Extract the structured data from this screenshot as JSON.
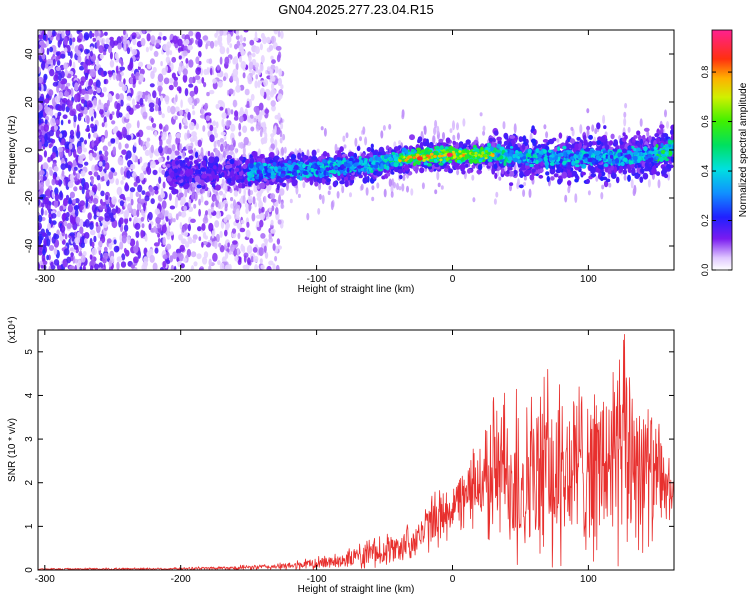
{
  "title": "GN04.2025.277.23.04.R15",
  "chart_data": [
    {
      "type": "heatmap",
      "title": "GN04.2025.277.23.04.R15",
      "xlabel": "Height of straight line (km)",
      "ylabel": "Frequency (Hz)",
      "xlim": [
        -305,
        163
      ],
      "ylim": [
        -50,
        50
      ],
      "xticks": [
        -300,
        -200,
        -100,
        0,
        100
      ],
      "yticks": [
        -40,
        -20,
        0,
        20,
        40
      ],
      "colorbar": {
        "label": "Normalized spectral amplitude",
        "range": [
          0,
          0.97
        ],
        "ticks": [
          0.0,
          0.2,
          0.4,
          0.6,
          0.8
        ]
      },
      "ridge": {
        "x": [
          -200,
          -150,
          -100,
          -60,
          -30,
          0,
          30,
          60,
          90,
          120,
          150,
          163
        ],
        "y": [
          -10,
          -9,
          -8,
          -6,
          -3,
          -2,
          -2,
          -3,
          -3,
          -3,
          -2,
          1
        ]
      },
      "peak": {
        "x": -2,
        "y": -2,
        "value": 0.95
      }
    },
    {
      "type": "line",
      "xlabel": "Height of straight line (km)",
      "ylabel": "SNR (10 * v/v)",
      "y_multiplier": "(x10⁴)",
      "xlim": [
        -305,
        163
      ],
      "ylim": [
        0,
        5.5
      ],
      "xticks": [
        -300,
        -200,
        -100,
        0,
        100
      ],
      "yticks": [
        0,
        1,
        2,
        3,
        4,
        5
      ],
      "series": [
        {
          "name": "SNR",
          "color": "#e8302e",
          "envelope": {
            "x": [
              -305,
              -200,
              -150,
              -120,
              -100,
              -80,
              -60,
              -40,
              -30,
              -20,
              -10,
              0,
              10,
              20,
              30,
              40,
              50,
              60,
              70,
              80,
              90,
              100,
              110,
              120,
              130,
              140,
              150,
              155,
              163
            ],
            "high": [
              0.04,
              0.06,
              0.12,
              0.18,
              0.3,
              0.45,
              0.7,
              0.9,
              1.1,
              1.5,
              1.9,
              2.1,
              2.4,
              3.3,
              4.3,
              4.0,
              4.2,
              3.9,
              4.6,
              4.2,
              4.6,
              4.9,
              4.4,
              5.4,
              5.4,
              4.6,
              3.5,
              3.1,
              2.1
            ],
            "low": [
              0.0,
              0.0,
              0.0,
              0.0,
              0.0,
              0.02,
              0.05,
              0.1,
              0.2,
              0.3,
              0.5,
              0.8,
              1.0,
              0.9,
              0.6,
              0.2,
              0.1,
              0.1,
              0.05,
              0.1,
              0.1,
              0.2,
              0.2,
              0.1,
              0.05,
              0.4,
              0.5,
              0.8,
              1.2
            ]
          }
        }
      ]
    }
  ]
}
